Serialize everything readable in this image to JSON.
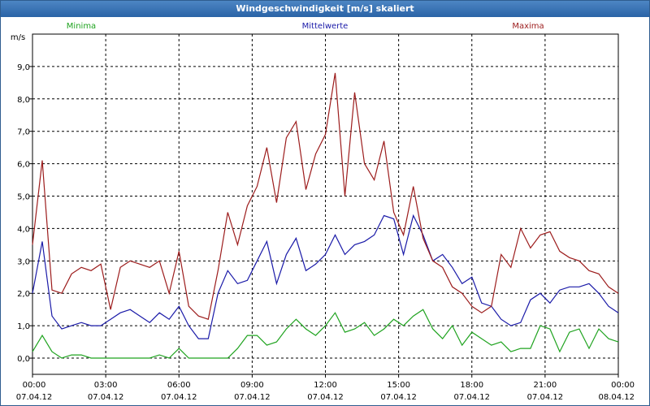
{
  "window": {
    "title": "Windgeschwindigkeit [m/s] skaliert"
  },
  "chart_data": {
    "type": "line",
    "ylabel": "m/s",
    "ylim": [
      -0.5,
      10.0
    ],
    "yticks": [
      "0,0",
      "1,0",
      "2,0",
      "3,0",
      "4,0",
      "5,0",
      "6,0",
      "7,0",
      "8,0",
      "9,0"
    ],
    "xlim": [
      0,
      24
    ],
    "xticks": [
      {
        "time": "00:00",
        "date": "07.04.12"
      },
      {
        "time": "03:00",
        "date": "07.04.12"
      },
      {
        "time": "06:00",
        "date": "07.04.12"
      },
      {
        "time": "09:00",
        "date": "07.04.12"
      },
      {
        "time": "12:00",
        "date": "07.04.12"
      },
      {
        "time": "15:00",
        "date": "07.04.12"
      },
      {
        "time": "18:00",
        "date": "07.04.12"
      },
      {
        "time": "21:00",
        "date": "07.04.12"
      },
      {
        "time": "00:00",
        "date": "08.04.12"
      }
    ],
    "x": [
      0,
      0.4,
      0.8,
      1.2,
      1.6,
      2.0,
      2.4,
      2.8,
      3.2,
      3.6,
      4.0,
      4.4,
      4.8,
      5.2,
      5.6,
      6.0,
      6.4,
      6.8,
      7.2,
      7.6,
      8.0,
      8.4,
      8.8,
      9.2,
      9.6,
      10.0,
      10.4,
      10.8,
      11.2,
      11.6,
      12.0,
      12.4,
      12.8,
      13.2,
      13.6,
      14.0,
      14.4,
      14.8,
      15.2,
      15.6,
      16.0,
      16.4,
      16.8,
      17.2,
      17.6,
      18.0,
      18.4,
      18.8,
      19.2,
      19.6,
      20.0,
      20.4,
      20.8,
      21.2,
      21.6,
      22.0,
      22.4,
      22.8,
      23.2,
      23.6,
      24.0
    ],
    "series": [
      {
        "name": "Minima",
        "color": "#1fa31f",
        "values": [
          0.2,
          0.7,
          0.2,
          0.0,
          0.1,
          0.1,
          0.0,
          0.0,
          0.0,
          0.0,
          0.0,
          0.0,
          0.0,
          0.1,
          0.0,
          0.3,
          0.0,
          0.0,
          0.0,
          0.0,
          0.0,
          0.3,
          0.7,
          0.7,
          0.4,
          0.5,
          0.9,
          1.2,
          0.9,
          0.7,
          1.0,
          1.4,
          0.8,
          0.9,
          1.1,
          0.7,
          0.9,
          1.2,
          1.0,
          1.3,
          1.5,
          0.9,
          0.6,
          1.0,
          0.4,
          0.8,
          0.6,
          0.4,
          0.5,
          0.2,
          0.3,
          0.3,
          1.0,
          0.9,
          0.2,
          0.8,
          0.9,
          0.3,
          0.9,
          0.6,
          0.5
        ]
      },
      {
        "name": "Mittelwerte",
        "color": "#1a1aa8",
        "values": [
          2.0,
          3.6,
          1.3,
          0.9,
          1.0,
          1.1,
          1.0,
          1.0,
          1.2,
          1.4,
          1.5,
          1.3,
          1.1,
          1.4,
          1.2,
          1.6,
          1.0,
          0.6,
          0.6,
          2.0,
          2.7,
          2.3,
          2.4,
          3.0,
          3.6,
          2.3,
          3.2,
          3.7,
          2.7,
          2.9,
          3.2,
          3.8,
          3.2,
          3.5,
          3.6,
          3.8,
          4.4,
          4.3,
          3.2,
          4.4,
          3.8,
          3.0,
          3.2,
          2.8,
          2.3,
          2.5,
          1.7,
          1.6,
          1.2,
          1.0,
          1.1,
          1.8,
          2.0,
          1.7,
          2.1,
          2.2,
          2.2,
          2.3,
          2.0,
          1.6,
          1.4
        ]
      },
      {
        "name": "Maxima",
        "color": "#9c1c1c",
        "values": [
          3.5,
          6.1,
          2.1,
          2.0,
          2.6,
          2.8,
          2.7,
          2.9,
          1.5,
          2.8,
          3.0,
          2.9,
          2.8,
          3.0,
          2.0,
          3.3,
          1.6,
          1.3,
          1.2,
          2.7,
          4.5,
          3.5,
          4.7,
          5.3,
          6.5,
          4.8,
          6.8,
          7.3,
          5.2,
          6.3,
          6.9,
          8.8,
          5.0,
          8.2,
          6.0,
          5.5,
          6.7,
          4.5,
          3.8,
          5.3,
          3.7,
          3.0,
          2.8,
          2.2,
          2.0,
          1.6,
          1.4,
          1.6,
          3.2,
          2.8,
          4.0,
          3.4,
          3.8,
          3.9,
          3.3,
          3.1,
          3.0,
          2.7,
          2.6,
          2.2,
          2.0
        ]
      }
    ]
  }
}
